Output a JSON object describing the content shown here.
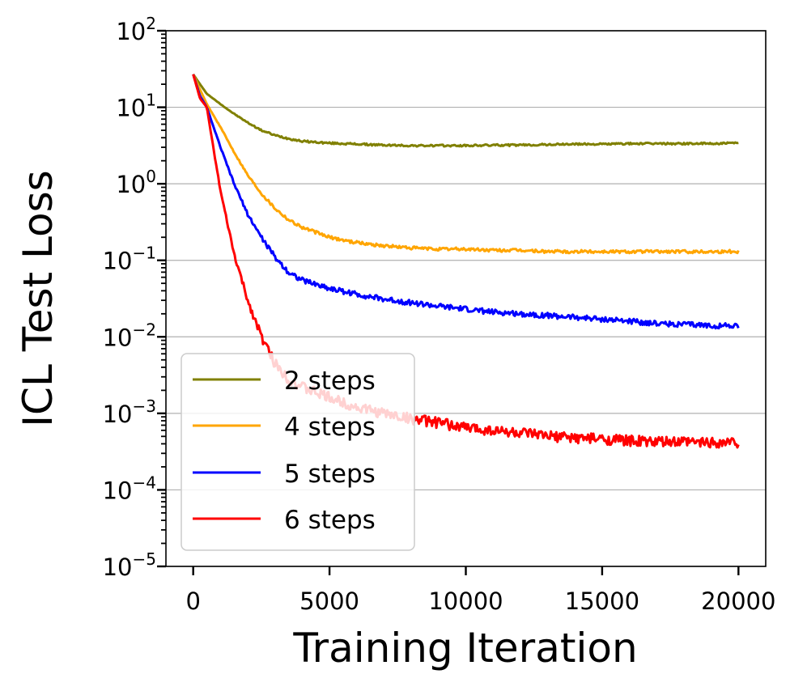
{
  "chart_data": {
    "type": "line",
    "title": "",
    "xlabel": "Training Iteration",
    "ylabel": "ICL Test Loss",
    "yscale": "log",
    "xlim": [
      -1000,
      21000
    ],
    "ylim": [
      1e-05,
      100
    ],
    "grid": "horizontal at each decade",
    "legend_position": "lower-left",
    "x_ticks": [
      {
        "value": 0,
        "label": "0"
      },
      {
        "value": 5000,
        "label": "5000"
      },
      {
        "value": 10000,
        "label": "10000"
      },
      {
        "value": 15000,
        "label": "15000"
      },
      {
        "value": 20000,
        "label": "20000"
      }
    ],
    "y_ticks": [
      {
        "value": 100,
        "base": "10",
        "exp": "2"
      },
      {
        "value": 10,
        "base": "10",
        "exp": "1"
      },
      {
        "value": 1,
        "base": "10",
        "exp": "0"
      },
      {
        "value": 0.1,
        "base": "10",
        "exp": "−1"
      },
      {
        "value": 0.01,
        "base": "10",
        "exp": "−2"
      },
      {
        "value": 0.001,
        "base": "10",
        "exp": "−3"
      },
      {
        "value": 0.0001,
        "base": "10",
        "exp": "−4"
      },
      {
        "value": 1e-05,
        "base": "10",
        "exp": "−5"
      }
    ],
    "x": [
      0,
      250,
      500,
      1000,
      1500,
      2000,
      2500,
      3000,
      3500,
      4000,
      5000,
      6000,
      7000,
      8000,
      9000,
      10000,
      11000,
      12000,
      13000,
      14000,
      15000,
      16000,
      17000,
      18000,
      19000,
      20000
    ],
    "series": [
      {
        "name": "2 steps",
        "color": "#808000",
        "values": [
          27,
          20,
          15,
          11,
          8.2,
          6.3,
          5.0,
          4.3,
          3.9,
          3.6,
          3.4,
          3.3,
          3.2,
          3.15,
          3.15,
          3.15,
          3.2,
          3.2,
          3.25,
          3.3,
          3.3,
          3.35,
          3.35,
          3.35,
          3.35,
          3.4
        ]
      },
      {
        "name": "4 steps",
        "color": "#FFA500",
        "values": [
          27,
          17,
          11,
          5.5,
          2.6,
          1.3,
          0.75,
          0.48,
          0.34,
          0.27,
          0.2,
          0.17,
          0.155,
          0.145,
          0.14,
          0.14,
          0.135,
          0.135,
          0.13,
          0.13,
          0.13,
          0.13,
          0.13,
          0.13,
          0.13,
          0.13
        ]
      },
      {
        "name": "5 steps",
        "color": "#0000FF",
        "values": [
          27,
          14,
          10,
          3.0,
          1.0,
          0.4,
          0.2,
          0.11,
          0.07,
          0.055,
          0.043,
          0.036,
          0.031,
          0.028,
          0.025,
          0.023,
          0.021,
          0.02,
          0.019,
          0.018,
          0.017,
          0.016,
          0.015,
          0.0145,
          0.014,
          0.014
        ]
      },
      {
        "name": "6 steps",
        "color": "#FF0000",
        "values": [
          27,
          13,
          10,
          0.8,
          0.12,
          0.03,
          0.01,
          0.0045,
          0.0028,
          0.0022,
          0.0016,
          0.0012,
          0.001,
          0.00085,
          0.00075,
          0.00065,
          0.0006,
          0.00055,
          0.0005,
          0.00048,
          0.00046,
          0.00044,
          0.00042,
          0.00042,
          0.00042,
          0.00042
        ]
      }
    ]
  }
}
